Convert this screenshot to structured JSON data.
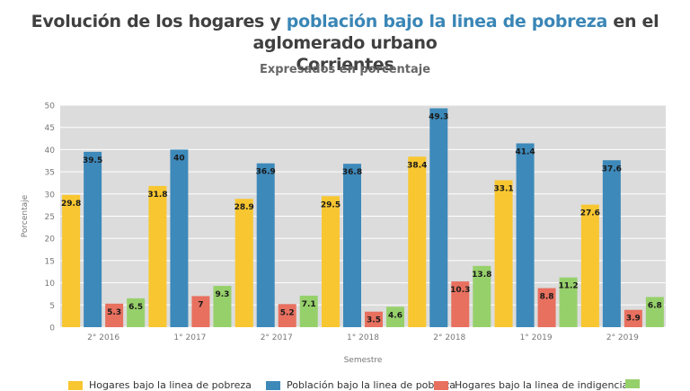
{
  "title": {
    "part1": "Evolución de los hogares y ",
    "highlight": "población bajo la linea de pobreza",
    "part2": " en el aglomerado urbano",
    "line2": "Corrientes"
  },
  "subtitle": "Expresados en porcentaje",
  "colors": {
    "highlight_text": "#3a86b6",
    "plot_bg": "#dcdcdc",
    "grid": "#ffffff"
  },
  "chart_data": {
    "type": "bar",
    "categories": [
      "2° 2016",
      "1° 2017",
      "2° 2017",
      "1° 2018",
      "2° 2018",
      "1° 2019",
      "2° 2019"
    ],
    "series": [
      {
        "name": "Hogares bajo la linea de pobreza",
        "color": "#f8c630",
        "values": [
          29.8,
          31.8,
          28.9,
          29.5,
          38.4,
          33.1,
          27.6
        ],
        "labels": [
          "29.8",
          "31.8",
          "28.9",
          "29.5",
          "38.4",
          "33.1",
          "27.6"
        ]
      },
      {
        "name": "Población bajo la linea de pobreza",
        "color": "#3d89ba",
        "values": [
          39.5,
          40,
          36.9,
          36.8,
          49.3,
          41.4,
          37.6
        ],
        "labels": [
          "39.5",
          "40",
          "36.9",
          "36.8",
          "49.3",
          "41.4",
          "37.6"
        ]
      },
      {
        "name": "Hogares bajo la linea de indigencia",
        "color": "#e8705f",
        "values": [
          5.3,
          7,
          5.2,
          3.5,
          10.3,
          8.8,
          3.9
        ],
        "labels": [
          "5.3",
          "7",
          "5.2",
          "3.5",
          "10.3",
          "8.8",
          "3.9"
        ]
      },
      {
        "name": "",
        "color": "#96d06b",
        "values": [
          6.5,
          9.3,
          7.1,
          4.6,
          13.8,
          11.2,
          6.8
        ],
        "labels": [
          "6.5",
          "9.3",
          "7.1",
          "4.6",
          "13.8",
          "11.2",
          "6.8"
        ]
      }
    ],
    "xlabel": "Semestre",
    "ylabel": "Porcentaje",
    "ylim": [
      0,
      50
    ],
    "yticks": [
      "0",
      "5",
      "10",
      "15",
      "20",
      "25",
      "30",
      "35",
      "40",
      "45",
      "50"
    ],
    "grid": true,
    "legend_position": "bottom"
  }
}
